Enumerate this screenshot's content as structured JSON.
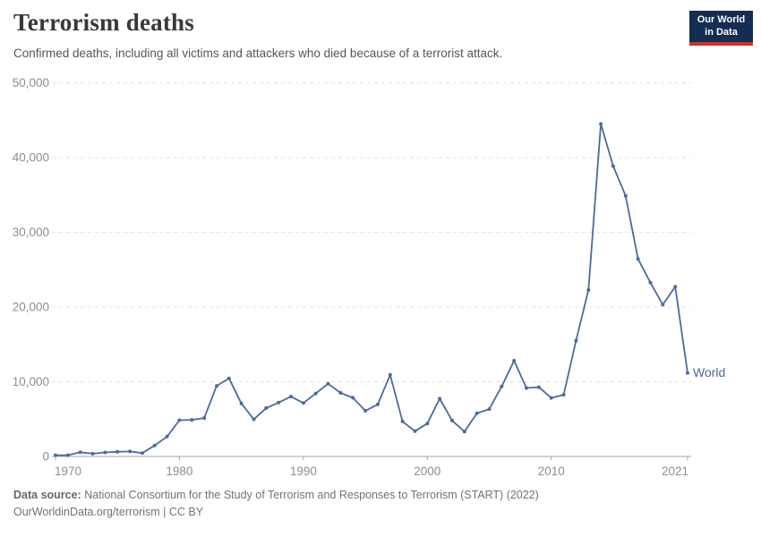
{
  "header": {
    "title": "Terrorism deaths",
    "subtitle": "Confirmed deaths, including all victims and attackers who died because of a terrorist attack.",
    "logo": {
      "line1": "Our World",
      "line2": "in Data"
    }
  },
  "chart_data": {
    "type": "line",
    "title": "Terrorism deaths",
    "xlabel": "",
    "ylabel": "",
    "xlim": [
      1970,
      2021
    ],
    "ylim": [
      0,
      50000
    ],
    "grid": "horizontal-dashed",
    "legend_position": "end-of-line-label",
    "x_ticks": [
      1970,
      1980,
      1990,
      2000,
      2010,
      2021
    ],
    "x_tick_labels": [
      "1970",
      "1980",
      "1990",
      "2000",
      "2010",
      "2021"
    ],
    "y_ticks": [
      0,
      10000,
      20000,
      30000,
      40000,
      50000
    ],
    "y_tick_labels": [
      "0",
      "10,000",
      "20,000",
      "30,000",
      "40,000",
      "50,000"
    ],
    "x": [
      1970,
      1971,
      1972,
      1973,
      1974,
      1975,
      1976,
      1977,
      1978,
      1979,
      1980,
      1981,
      1982,
      1983,
      1984,
      1985,
      1986,
      1987,
      1988,
      1989,
      1990,
      1991,
      1992,
      1993,
      1994,
      1995,
      1996,
      1997,
      1998,
      1999,
      2000,
      2001,
      2002,
      2003,
      2004,
      2005,
      2006,
      2007,
      2008,
      2009,
      2010,
      2011,
      2012,
      2013,
      2014,
      2015,
      2016,
      2017,
      2018,
      2019,
      2020,
      2021
    ],
    "series": [
      {
        "name": "World",
        "color": "#4C6A9C",
        "values": [
          171,
          173,
          566,
          370,
          539,
          617,
          672,
          456,
          1459,
          2662,
          4852,
          4894,
          5136,
          9444,
          10450,
          7094,
          4976,
          6482,
          7208,
          8009,
          7148,
          8429,
          9742,
          8500,
          7857,
          6104,
          6960,
          10924,
          4688,
          3393,
          4405,
          7729,
          4805,
          3317,
          5774,
          6331,
          9380,
          12820,
          9160,
          9272,
          7827,
          8246,
          15497,
          22273,
          44490,
          38847,
          34871,
          26445,
          23257,
          20306,
          22711,
          11177
        ]
      }
    ]
  },
  "footer": {
    "datasource_label": "Data source:",
    "datasource_text": "National Consortium for the Study of Terrorism and Responses to Terrorism (START) (2022)",
    "link_line": "OurWorldinData.org/terrorism | CC BY"
  },
  "colors": {
    "accent": "#4C6A9C",
    "logo_bg": "#142D52",
    "logo_bar": "#C9332D",
    "grid": "#E3E3E3",
    "axis": "#A5A5A5",
    "muted_text": "#8E8E8E"
  }
}
